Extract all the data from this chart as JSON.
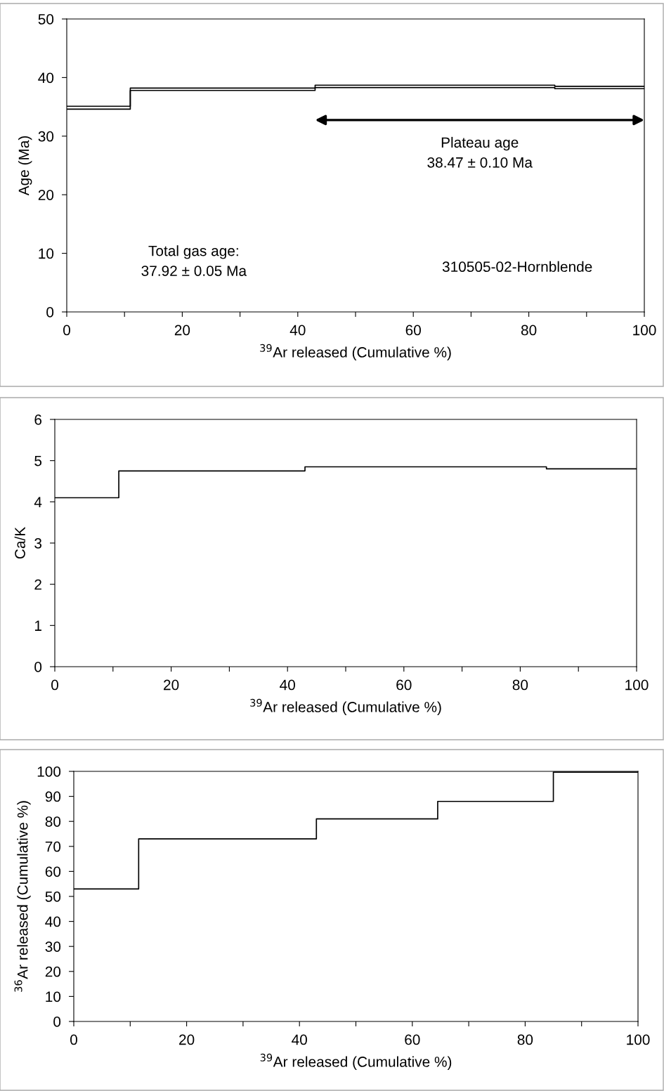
{
  "chart_data": [
    {
      "type": "step",
      "xlabel": "$^{39}$Ar released (Cumulative %)",
      "ylabel": "Age (Ma)",
      "xlim": [
        0,
        100
      ],
      "xticks": [
        0,
        {
          "value": 10,
          "label": null
        },
        20,
        {
          "value": 30,
          "label": null
        },
        40,
        {
          "value": 50,
          "label": null
        },
        60,
        {
          "value": 70,
          "label": null
        },
        80,
        {
          "value": 90,
          "label": null
        },
        100
      ],
      "ylim": [
        0,
        50
      ],
      "yticks": [
        0,
        10,
        20,
        30,
        40,
        50
      ],
      "grid": false,
      "legend": false,
      "series": [
        {
          "color": "#000000",
          "x": [
            0,
            11,
            43,
            64,
            84.5,
            100
          ],
          "values": [
            35.1,
            38.2,
            38.7,
            38.7,
            38.5,
            38.5
          ]
        },
        {
          "color": "#000000",
          "x": [
            0,
            11,
            43,
            64,
            84.5,
            100
          ],
          "values": [
            34.6,
            37.8,
            38.3,
            38.3,
            38.1,
            38.1
          ]
        }
      ],
      "annotations": [
        "Plateau age\n38.47 ± 0.10 Ma",
        "Total gas age:\n37.92 ± 0.05 Ma",
        "310505-02-Hornblende"
      ]
    },
    {
      "type": "step",
      "xlabel": "$^{39}$Ar released (Cumulative %)",
      "ylabel": "Ca/K",
      "xlim": [
        0,
        100
      ],
      "xticks": [
        0,
        {
          "value": 10,
          "label": null
        },
        20,
        {
          "value": 30,
          "label": null
        },
        40,
        {
          "value": 50,
          "label": null
        },
        60,
        {
          "value": 70,
          "label": null
        },
        80,
        {
          "value": 90,
          "label": null
        },
        100
      ],
      "ylim": [
        0,
        6
      ],
      "yticks": [
        0,
        1,
        2,
        3,
        4,
        5,
        6
      ],
      "grid": false,
      "legend": false,
      "series": [
        {
          "color": "#000000",
          "x": [
            0,
            11,
            43,
            64,
            84.5,
            100
          ],
          "values": [
            4.1,
            4.75,
            4.85,
            4.85,
            4.8,
            4.8
          ]
        }
      ]
    },
    {
      "type": "step",
      "xlabel": "$^{39}$Ar released (Cumulative %)",
      "ylabel": "$^{36}$Ar released (Cumulative %)",
      "xlim": [
        0,
        100
      ],
      "xticks": [
        0,
        {
          "value": 10,
          "label": null
        },
        20,
        {
          "value": 30,
          "label": null
        },
        40,
        {
          "value": 50,
          "label": null
        },
        60,
        {
          "value": 70,
          "label": null
        },
        80,
        {
          "value": 90,
          "label": null
        },
        100
      ],
      "ylim": [
        0,
        100
      ],
      "yticks": [
        0,
        10,
        20,
        30,
        40,
        50,
        60,
        70,
        80,
        90,
        100
      ],
      "grid": false,
      "legend": false,
      "series": [
        {
          "color": "#000000",
          "x": [
            0,
            11.5,
            43,
            64.5,
            85,
            100
          ],
          "values": [
            53,
            73,
            81,
            88,
            99.7,
            99.7
          ]
        }
      ]
    }
  ]
}
